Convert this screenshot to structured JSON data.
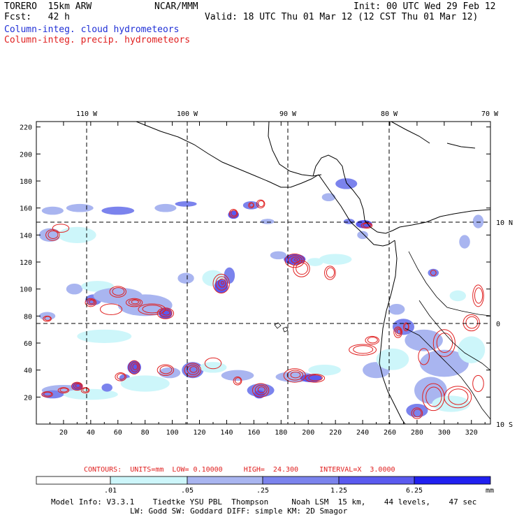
{
  "header": {
    "model": "TORERO  15km ARW",
    "center": "NCAR/MMM",
    "init": "Init: 00 UTC Wed 29 Feb 12",
    "fcst": "Fcst:   42 h",
    "valid": "Valid: 18 UTC Thu 01 Mar 12 (12 CST Thu 01 Mar 12)",
    "field_blue": "Column-integ. cloud hydrometeors",
    "field_red": "Column-integ. precip. hydrometeors"
  },
  "map": {
    "lon_labels": [
      "110 W",
      "100 W",
      "90 W",
      "80 W",
      "70 W"
    ],
    "lat_labels": [
      "10 N",
      "0",
      "10 S"
    ],
    "x_ticks": [
      "20",
      "40",
      "60",
      "80",
      "100",
      "120",
      "140",
      "160",
      "180",
      "200",
      "220",
      "240",
      "260",
      "280",
      "300",
      "320"
    ],
    "y_ticks": [
      "20",
      "40",
      "60",
      "80",
      "100",
      "120",
      "140",
      "160",
      "180",
      "200",
      "220"
    ],
    "x_range": [
      0,
      334
    ],
    "y_range": [
      0,
      224
    ],
    "colors": {
      "frame": "#000000",
      "coast": "#000000",
      "grid": "#000000",
      "contour": "#e02020"
    },
    "cloud_patches": [
      {
        "x": 12,
        "y": 158,
        "rx": 8,
        "ry": 3,
        "level": 1
      },
      {
        "x": 32,
        "y": 160,
        "rx": 10,
        "ry": 3,
        "level": 1
      },
      {
        "x": 60,
        "y": 158,
        "rx": 12,
        "ry": 3,
        "level": 2
      },
      {
        "x": 95,
        "y": 160,
        "rx": 8,
        "ry": 3,
        "level": 1
      },
      {
        "x": 110,
        "y": 163,
        "rx": 8,
        "ry": 2,
        "level": 2
      },
      {
        "x": 10,
        "y": 140,
        "rx": 8,
        "ry": 5,
        "level": 1
      },
      {
        "x": 30,
        "y": 140,
        "rx": 14,
        "ry": 6,
        "level": 0
      },
      {
        "x": 28,
        "y": 100,
        "rx": 6,
        "ry": 4,
        "level": 1
      },
      {
        "x": 45,
        "y": 102,
        "rx": 12,
        "ry": 4,
        "level": 0
      },
      {
        "x": 42,
        "y": 92,
        "rx": 6,
        "ry": 4,
        "level": 2
      },
      {
        "x": 60,
        "y": 95,
        "rx": 18,
        "ry": 6,
        "level": 1
      },
      {
        "x": 80,
        "y": 88,
        "rx": 20,
        "ry": 8,
        "level": 1
      },
      {
        "x": 95,
        "y": 82,
        "rx": 5,
        "ry": 4,
        "level": 3
      },
      {
        "x": 8,
        "y": 80,
        "rx": 6,
        "ry": 3,
        "level": 1
      },
      {
        "x": 50,
        "y": 65,
        "rx": 20,
        "ry": 5,
        "level": 0
      },
      {
        "x": 110,
        "y": 108,
        "rx": 6,
        "ry": 4,
        "level": 1
      },
      {
        "x": 130,
        "y": 108,
        "rx": 8,
        "ry": 6,
        "level": 0
      },
      {
        "x": 136,
        "y": 102,
        "rx": 5,
        "ry": 5,
        "level": 3
      },
      {
        "x": 142,
        "y": 110,
        "rx": 4,
        "ry": 6,
        "level": 2
      },
      {
        "x": 145,
        "y": 155,
        "rx": 4,
        "ry": 3,
        "level": 3
      },
      {
        "x": 158,
        "y": 162,
        "rx": 6,
        "ry": 3,
        "level": 2
      },
      {
        "x": 170,
        "y": 150,
        "rx": 5,
        "ry": 2,
        "level": 1
      },
      {
        "x": 190,
        "y": 122,
        "rx": 8,
        "ry": 4,
        "level": 3
      },
      {
        "x": 178,
        "y": 125,
        "rx": 6,
        "ry": 3,
        "level": 1
      },
      {
        "x": 205,
        "y": 120,
        "rx": 6,
        "ry": 3,
        "level": 0
      },
      {
        "x": 220,
        "y": 122,
        "rx": 12,
        "ry": 4,
        "level": 0
      },
      {
        "x": 228,
        "y": 178,
        "rx": 8,
        "ry": 4,
        "level": 2
      },
      {
        "x": 215,
        "y": 168,
        "rx": 5,
        "ry": 3,
        "level": 1
      },
      {
        "x": 230,
        "y": 150,
        "rx": 4,
        "ry": 2,
        "level": 2
      },
      {
        "x": 241,
        "y": 148,
        "rx": 6,
        "ry": 3,
        "level": 3
      },
      {
        "x": 240,
        "y": 140,
        "rx": 4,
        "ry": 3,
        "level": 1
      },
      {
        "x": 20,
        "y": 25,
        "rx": 16,
        "ry": 4,
        "level": 1
      },
      {
        "x": 40,
        "y": 22,
        "rx": 20,
        "ry": 4,
        "level": 0
      },
      {
        "x": 12,
        "y": 22,
        "rx": 8,
        "ry": 3,
        "level": 2
      },
      {
        "x": 30,
        "y": 28,
        "rx": 4,
        "ry": 3,
        "level": 3
      },
      {
        "x": 52,
        "y": 27,
        "rx": 4,
        "ry": 3,
        "level": 2
      },
      {
        "x": 72,
        "y": 42,
        "rx": 5,
        "ry": 5,
        "level": 3
      },
      {
        "x": 65,
        "y": 34,
        "rx": 4,
        "ry": 3,
        "level": 2
      },
      {
        "x": 80,
        "y": 30,
        "rx": 18,
        "ry": 6,
        "level": 0
      },
      {
        "x": 98,
        "y": 38,
        "rx": 8,
        "ry": 4,
        "level": 1
      },
      {
        "x": 115,
        "y": 40,
        "rx": 8,
        "ry": 6,
        "level": 2
      },
      {
        "x": 130,
        "y": 42,
        "rx": 10,
        "ry": 4,
        "level": 0
      },
      {
        "x": 148,
        "y": 36,
        "rx": 12,
        "ry": 4,
        "level": 1
      },
      {
        "x": 165,
        "y": 25,
        "rx": 10,
        "ry": 5,
        "level": 2
      },
      {
        "x": 164,
        "y": 22,
        "rx": 4,
        "ry": 3,
        "level": 3
      },
      {
        "x": 190,
        "y": 35,
        "rx": 14,
        "ry": 4,
        "level": 1
      },
      {
        "x": 202,
        "y": 34,
        "rx": 8,
        "ry": 3,
        "level": 3
      },
      {
        "x": 212,
        "y": 40,
        "rx": 12,
        "ry": 4,
        "level": 0
      },
      {
        "x": 250,
        "y": 40,
        "rx": 10,
        "ry": 6,
        "level": 1
      },
      {
        "x": 262,
        "y": 48,
        "rx": 12,
        "ry": 8,
        "level": 0
      },
      {
        "x": 270,
        "y": 72,
        "rx": 8,
        "ry": 6,
        "level": 2
      },
      {
        "x": 285,
        "y": 62,
        "rx": 14,
        "ry": 8,
        "level": 1
      },
      {
        "x": 300,
        "y": 45,
        "rx": 18,
        "ry": 10,
        "level": 1
      },
      {
        "x": 320,
        "y": 55,
        "rx": 10,
        "ry": 10,
        "level": 0
      },
      {
        "x": 290,
        "y": 25,
        "rx": 12,
        "ry": 10,
        "level": 1
      },
      {
        "x": 280,
        "y": 10,
        "rx": 8,
        "ry": 5,
        "level": 2
      },
      {
        "x": 305,
        "y": 15,
        "rx": 14,
        "ry": 6,
        "level": 0
      },
      {
        "x": 265,
        "y": 85,
        "rx": 6,
        "ry": 4,
        "level": 1
      },
      {
        "x": 310,
        "y": 95,
        "rx": 6,
        "ry": 4,
        "level": 0
      },
      {
        "x": 292,
        "y": 112,
        "rx": 4,
        "ry": 3,
        "level": 2
      },
      {
        "x": 315,
        "y": 135,
        "rx": 4,
        "ry": 5,
        "level": 1
      },
      {
        "x": 325,
        "y": 150,
        "rx": 4,
        "ry": 5,
        "level": 1
      }
    ],
    "precip_contours": [
      {
        "x": 12,
        "y": 140,
        "rx": 5,
        "ry": 4,
        "rings": 2
      },
      {
        "x": 18,
        "y": 145,
        "rx": 6,
        "ry": 3,
        "rings": 1
      },
      {
        "x": 40,
        "y": 90,
        "rx": 4,
        "ry": 3,
        "rings": 3
      },
      {
        "x": 60,
        "y": 98,
        "rx": 6,
        "ry": 4,
        "rings": 2
      },
      {
        "x": 72,
        "y": 90,
        "rx": 6,
        "ry": 3,
        "rings": 3
      },
      {
        "x": 95,
        "y": 82,
        "rx": 6,
        "ry": 4,
        "rings": 3
      },
      {
        "x": 55,
        "y": 85,
        "rx": 8,
        "ry": 4,
        "rings": 1
      },
      {
        "x": 85,
        "y": 85,
        "rx": 10,
        "ry": 4,
        "rings": 2
      },
      {
        "x": 8,
        "y": 78,
        "rx": 3,
        "ry": 2,
        "rings": 2
      },
      {
        "x": 136,
        "y": 104,
        "rx": 6,
        "ry": 7,
        "rings": 4
      },
      {
        "x": 145,
        "y": 156,
        "rx": 3,
        "ry": 3,
        "rings": 2
      },
      {
        "x": 158,
        "y": 162,
        "rx": 2,
        "ry": 2,
        "rings": 2
      },
      {
        "x": 165,
        "y": 163,
        "rx": 3,
        "ry": 3,
        "rings": 2
      },
      {
        "x": 190,
        "y": 121,
        "rx": 7,
        "ry": 5,
        "rings": 4
      },
      {
        "x": 195,
        "y": 115,
        "rx": 6,
        "ry": 6,
        "rings": 2
      },
      {
        "x": 216,
        "y": 112,
        "rx": 4,
        "ry": 5,
        "rings": 2
      },
      {
        "x": 243,
        "y": 147,
        "rx": 4,
        "ry": 2,
        "rings": 2
      },
      {
        "x": 292,
        "y": 112,
        "rx": 2,
        "ry": 2,
        "rings": 1
      },
      {
        "x": 8,
        "y": 22,
        "rx": 4,
        "ry": 2,
        "rings": 2
      },
      {
        "x": 20,
        "y": 25,
        "rx": 4,
        "ry": 2,
        "rings": 2
      },
      {
        "x": 30,
        "y": 28,
        "rx": 4,
        "ry": 3,
        "rings": 3
      },
      {
        "x": 36,
        "y": 25,
        "rx": 3,
        "ry": 2,
        "rings": 2
      },
      {
        "x": 62,
        "y": 35,
        "rx": 4,
        "ry": 3,
        "rings": 2
      },
      {
        "x": 72,
        "y": 42,
        "rx": 4,
        "ry": 5,
        "rings": 3
      },
      {
        "x": 95,
        "y": 40,
        "rx": 6,
        "ry": 4,
        "rings": 2
      },
      {
        "x": 115,
        "y": 40,
        "rx": 6,
        "ry": 5,
        "rings": 3
      },
      {
        "x": 130,
        "y": 45,
        "rx": 6,
        "ry": 4,
        "rings": 1
      },
      {
        "x": 148,
        "y": 32,
        "rx": 3,
        "ry": 3,
        "rings": 2
      },
      {
        "x": 165,
        "y": 25,
        "rx": 6,
        "ry": 5,
        "rings": 3
      },
      {
        "x": 190,
        "y": 36,
        "rx": 8,
        "ry": 5,
        "rings": 3
      },
      {
        "x": 205,
        "y": 34,
        "rx": 7,
        "ry": 3,
        "rings": 2
      },
      {
        "x": 240,
        "y": 55,
        "rx": 10,
        "ry": 4,
        "rings": 2
      },
      {
        "x": 247,
        "y": 62,
        "rx": 5,
        "ry": 3,
        "rings": 2
      },
      {
        "x": 266,
        "y": 68,
        "rx": 3,
        "ry": 4,
        "rings": 3
      },
      {
        "x": 272,
        "y": 72,
        "rx": 2,
        "ry": 3,
        "rings": 2
      },
      {
        "x": 285,
        "y": 50,
        "rx": 4,
        "ry": 6,
        "rings": 1
      },
      {
        "x": 300,
        "y": 60,
        "rx": 8,
        "ry": 10,
        "rings": 2
      },
      {
        "x": 320,
        "y": 75,
        "rx": 6,
        "ry": 6,
        "rings": 2
      },
      {
        "x": 325,
        "y": 95,
        "rx": 4,
        "ry": 8,
        "rings": 2
      },
      {
        "x": 292,
        "y": 20,
        "rx": 8,
        "ry": 10,
        "rings": 2
      },
      {
        "x": 310,
        "y": 20,
        "rx": 10,
        "ry": 8,
        "rings": 2
      },
      {
        "x": 280,
        "y": 8,
        "rx": 4,
        "ry": 4,
        "rings": 2
      },
      {
        "x": 325,
        "y": 30,
        "rx": 4,
        "ry": 6,
        "rings": 1
      }
    ]
  },
  "contours_info": "CONTOURS:  UNITS=mm  LOW= 0.10000     HIGH=  24.300     INTERVAL=X  3.0000",
  "colorbar": {
    "labels": [
      ".01",
      ".05",
      ".25",
      "1.25",
      "6.25"
    ],
    "units": "mm",
    "colors": [
      "#ffffff",
      "#cdf6fa",
      "#a9b5f0",
      "#7b83ed",
      "#5a5aef",
      "#2020f0"
    ]
  },
  "model_info": {
    "line1": "Model Info: V3.3.1    Tiedtke YSU PBL  Thompson     Noah LSM  15 km,    44 levels,    47 sec",
    "line2": "LW: Godd SW: Goddard DIFF: simple KM: 2D Smagor"
  }
}
